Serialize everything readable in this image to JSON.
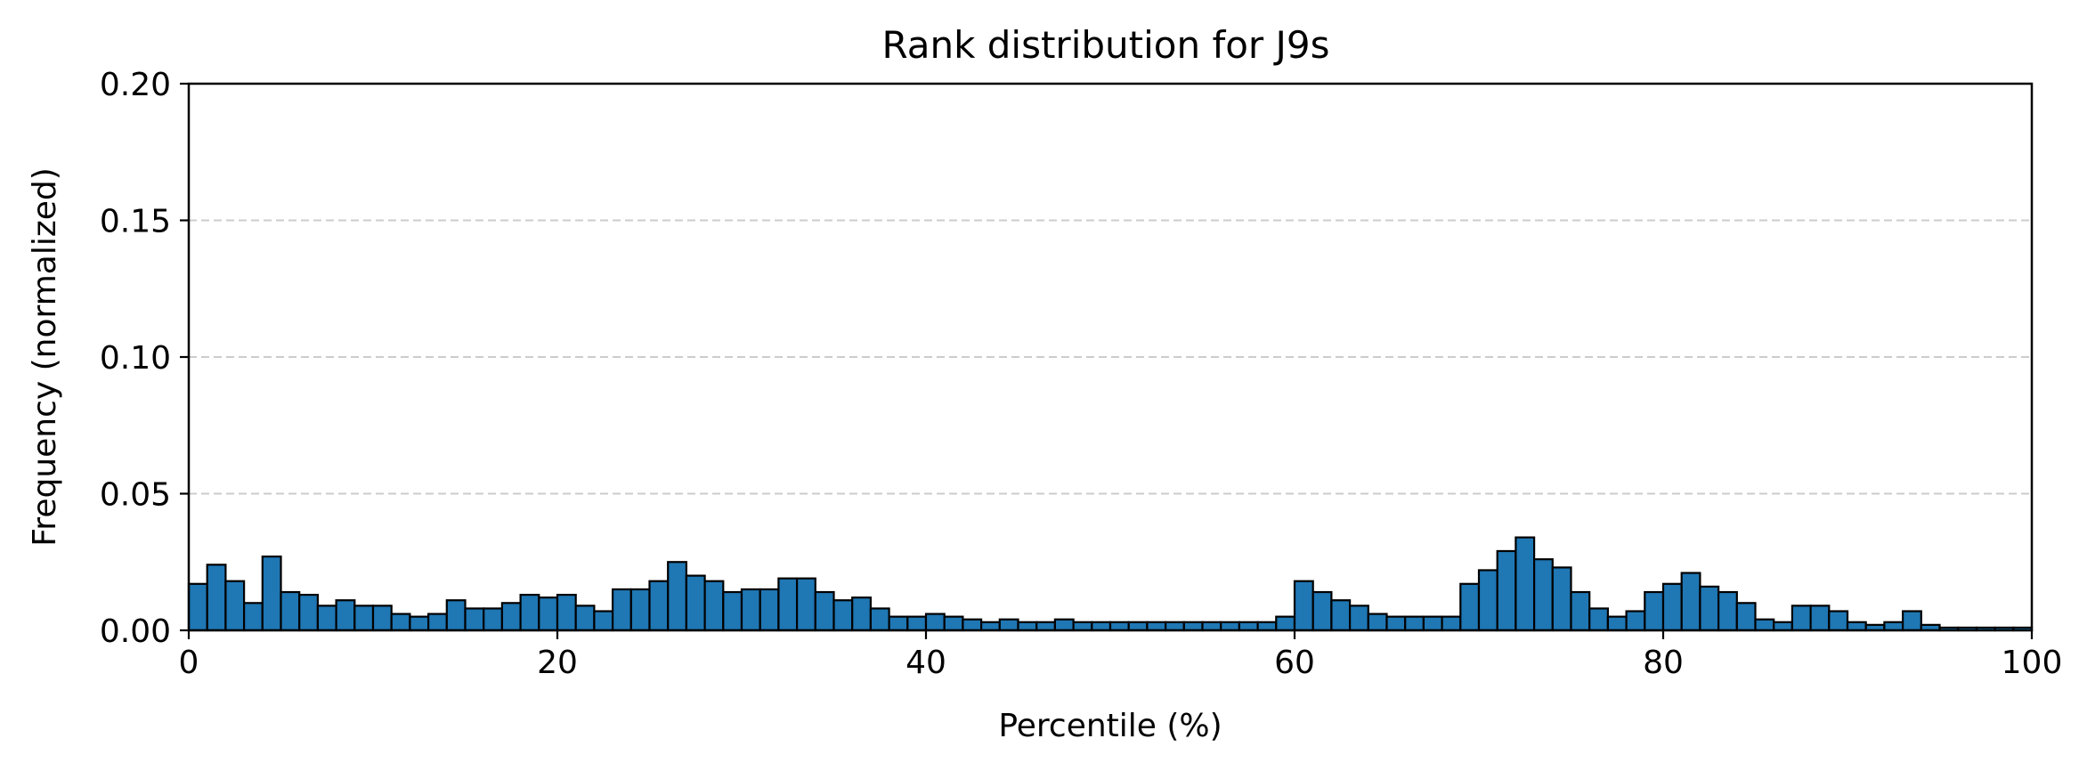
{
  "chart_data": {
    "type": "bar",
    "title": "Rank distribution for J9s",
    "xlabel": "Percentile (%)",
    "ylabel": "Frequency (normalized)",
    "xlim": [
      0,
      100
    ],
    "ylim": [
      0,
      0.2
    ],
    "xticks": [
      "0",
      "20",
      "40",
      "60",
      "80",
      "100"
    ],
    "yticks": [
      "0.00",
      "0.05",
      "0.10",
      "0.15",
      "0.20"
    ],
    "grid": "y-dashed",
    "bin_width": 1,
    "bar_color": "#1f77b4",
    "edge_color": "#000000",
    "values": [
      0.017,
      0.024,
      0.018,
      0.01,
      0.027,
      0.014,
      0.013,
      0.009,
      0.011,
      0.009,
      0.009,
      0.006,
      0.005,
      0.006,
      0.011,
      0.008,
      0.008,
      0.01,
      0.013,
      0.012,
      0.013,
      0.009,
      0.007,
      0.015,
      0.015,
      0.018,
      0.025,
      0.02,
      0.018,
      0.014,
      0.015,
      0.015,
      0.019,
      0.019,
      0.014,
      0.011,
      0.012,
      0.008,
      0.005,
      0.005,
      0.006,
      0.005,
      0.004,
      0.003,
      0.004,
      0.003,
      0.003,
      0.004,
      0.003,
      0.003,
      0.003,
      0.003,
      0.003,
      0.003,
      0.003,
      0.003,
      0.003,
      0.003,
      0.003,
      0.005,
      0.018,
      0.014,
      0.011,
      0.009,
      0.006,
      0.005,
      0.005,
      0.005,
      0.005,
      0.017,
      0.022,
      0.029,
      0.034,
      0.026,
      0.023,
      0.014,
      0.008,
      0.005,
      0.007,
      0.014,
      0.017,
      0.021,
      0.016,
      0.014,
      0.01,
      0.004,
      0.003,
      0.009,
      0.009,
      0.007,
      0.003,
      0.002,
      0.003,
      0.007,
      0.002,
      0.001,
      0.001,
      0.001,
      0.001,
      0.001
    ]
  }
}
